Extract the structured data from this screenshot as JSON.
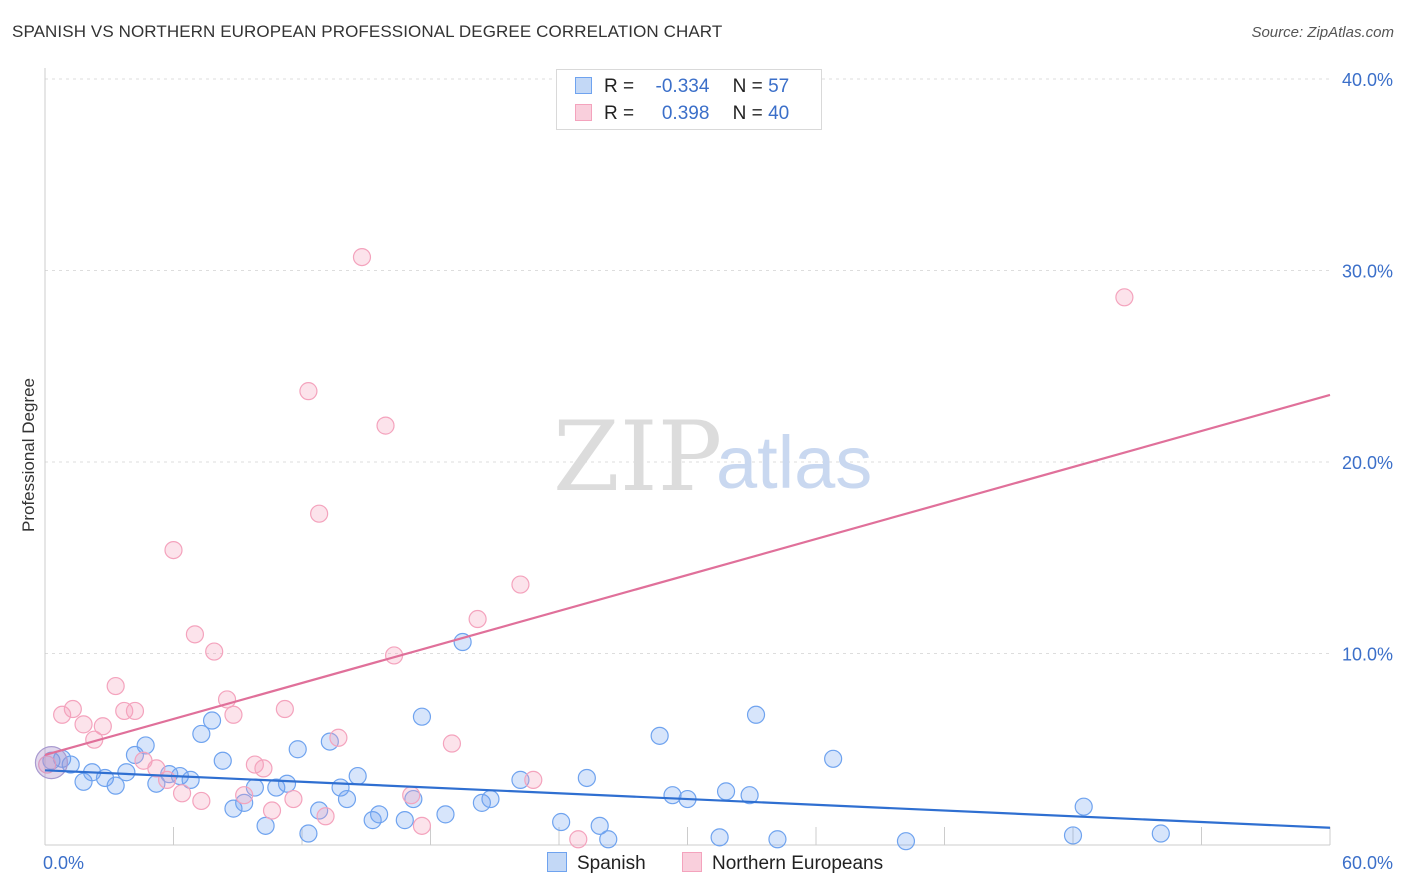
{
  "title": "SPANISH VS NORTHERN EUROPEAN PROFESSIONAL DEGREE CORRELATION CHART",
  "source": "Source: ZipAtlas.com",
  "watermark": {
    "part1": "ZIP",
    "part2": "atlas"
  },
  "legend": {
    "rows": [
      {
        "r_label": "R =",
        "r_value": "-0.334",
        "n_label": "N =",
        "n_value": "57",
        "color": "#6fa3ef"
      },
      {
        "r_label": "R =",
        "r_value": "0.398",
        "n_label": "N =",
        "n_value": "40",
        "color": "#f4a3bd"
      }
    ]
  },
  "bottom_legend": [
    {
      "label": "Spanish",
      "color": "#6fa3ef"
    },
    {
      "label": "Northern Europeans",
      "color": "#f4a3bd"
    }
  ],
  "chart_data": {
    "type": "scatter",
    "title": "SPANISH VS NORTHERN EUROPEAN PROFESSIONAL DEGREE CORRELATION CHART",
    "xlabel": "",
    "ylabel": "Professional Degree",
    "xlim": [
      0,
      60
    ],
    "ylim": [
      0,
      40
    ],
    "x_tick_labels": [
      "0.0%",
      "60.0%"
    ],
    "y_ticks": [
      10,
      20,
      30,
      40
    ],
    "y_tick_labels": [
      "10.0%",
      "20.0%",
      "30.0%",
      "40.0%"
    ],
    "grid": "horizontal dashed",
    "legend_position": "top-center",
    "series": [
      {
        "name": "Spanish",
        "color": "#6fa3ef",
        "trend": {
          "x": [
            0,
            60
          ],
          "y": [
            3.9,
            0.9
          ]
        },
        "points": [
          [
            0.3,
            4.4
          ],
          [
            0.8,
            4.5
          ],
          [
            1.2,
            4.2
          ],
          [
            1.8,
            3.3
          ],
          [
            2.2,
            3.8
          ],
          [
            2.8,
            3.5
          ],
          [
            3.3,
            3.1
          ],
          [
            3.8,
            3.8
          ],
          [
            4.2,
            4.7
          ],
          [
            4.7,
            5.2
          ],
          [
            5.2,
            3.2
          ],
          [
            5.8,
            3.7
          ],
          [
            6.3,
            3.6
          ],
          [
            6.8,
            3.4
          ],
          [
            7.3,
            5.8
          ],
          [
            7.8,
            6.5
          ],
          [
            8.3,
            4.4
          ],
          [
            8.8,
            1.9
          ],
          [
            9.3,
            2.2
          ],
          [
            9.8,
            3.0
          ],
          [
            10.3,
            1.0
          ],
          [
            10.8,
            3.0
          ],
          [
            11.3,
            3.2
          ],
          [
            11.8,
            5.0
          ],
          [
            12.3,
            0.6
          ],
          [
            12.8,
            1.8
          ],
          [
            13.3,
            5.4
          ],
          [
            13.8,
            3.0
          ],
          [
            14.1,
            2.4
          ],
          [
            14.6,
            3.6
          ],
          [
            15.3,
            1.3
          ],
          [
            15.6,
            1.6
          ],
          [
            16.8,
            1.3
          ],
          [
            17.2,
            2.4
          ],
          [
            17.6,
            6.7
          ],
          [
            18.7,
            1.6
          ],
          [
            19.5,
            10.6
          ],
          [
            20.4,
            2.2
          ],
          [
            20.8,
            2.4
          ],
          [
            22.2,
            3.4
          ],
          [
            24.1,
            1.2
          ],
          [
            25.3,
            3.5
          ],
          [
            25.9,
            1.0
          ],
          [
            26.3,
            0.3
          ],
          [
            28.7,
            5.7
          ],
          [
            29.3,
            2.6
          ],
          [
            30.0,
            2.4
          ],
          [
            31.5,
            0.4
          ],
          [
            31.8,
            2.8
          ],
          [
            32.9,
            2.6
          ],
          [
            33.2,
            6.8
          ],
          [
            34.2,
            0.3
          ],
          [
            36.8,
            4.5
          ],
          [
            40.2,
            0.2
          ],
          [
            48.0,
            0.5
          ],
          [
            48.5,
            2.0
          ],
          [
            52.1,
            0.6
          ]
        ]
      },
      {
        "name": "Northern Europeans",
        "color": "#f4a3bd",
        "trend": {
          "x": [
            0,
            60
          ],
          "y": [
            4.7,
            23.5
          ]
        },
        "points": [
          [
            0.1,
            4.2
          ],
          [
            0.8,
            6.8
          ],
          [
            1.3,
            7.1
          ],
          [
            1.8,
            6.3
          ],
          [
            2.3,
            5.5
          ],
          [
            2.7,
            6.2
          ],
          [
            3.3,
            8.3
          ],
          [
            3.7,
            7.0
          ],
          [
            4.2,
            7.0
          ],
          [
            4.6,
            4.4
          ],
          [
            5.2,
            4.0
          ],
          [
            5.7,
            3.4
          ],
          [
            6.0,
            15.4
          ],
          [
            6.4,
            2.7
          ],
          [
            7.0,
            11.0
          ],
          [
            7.3,
            2.3
          ],
          [
            7.9,
            10.1
          ],
          [
            8.5,
            7.6
          ],
          [
            8.8,
            6.8
          ],
          [
            9.3,
            2.6
          ],
          [
            9.8,
            4.2
          ],
          [
            10.2,
            4.0
          ],
          [
            10.6,
            1.8
          ],
          [
            11.2,
            7.1
          ],
          [
            11.6,
            2.4
          ],
          [
            12.3,
            23.7
          ],
          [
            12.8,
            17.3
          ],
          [
            13.1,
            1.5
          ],
          [
            13.7,
            5.6
          ],
          [
            14.8,
            30.7
          ],
          [
            15.9,
            21.9
          ],
          [
            16.3,
            9.9
          ],
          [
            17.1,
            2.6
          ],
          [
            17.6,
            1.0
          ],
          [
            19.0,
            5.3
          ],
          [
            20.2,
            11.8
          ],
          [
            22.2,
            13.6
          ],
          [
            22.8,
            3.4
          ],
          [
            24.9,
            0.3
          ],
          [
            50.4,
            28.6
          ]
        ]
      }
    ]
  }
}
